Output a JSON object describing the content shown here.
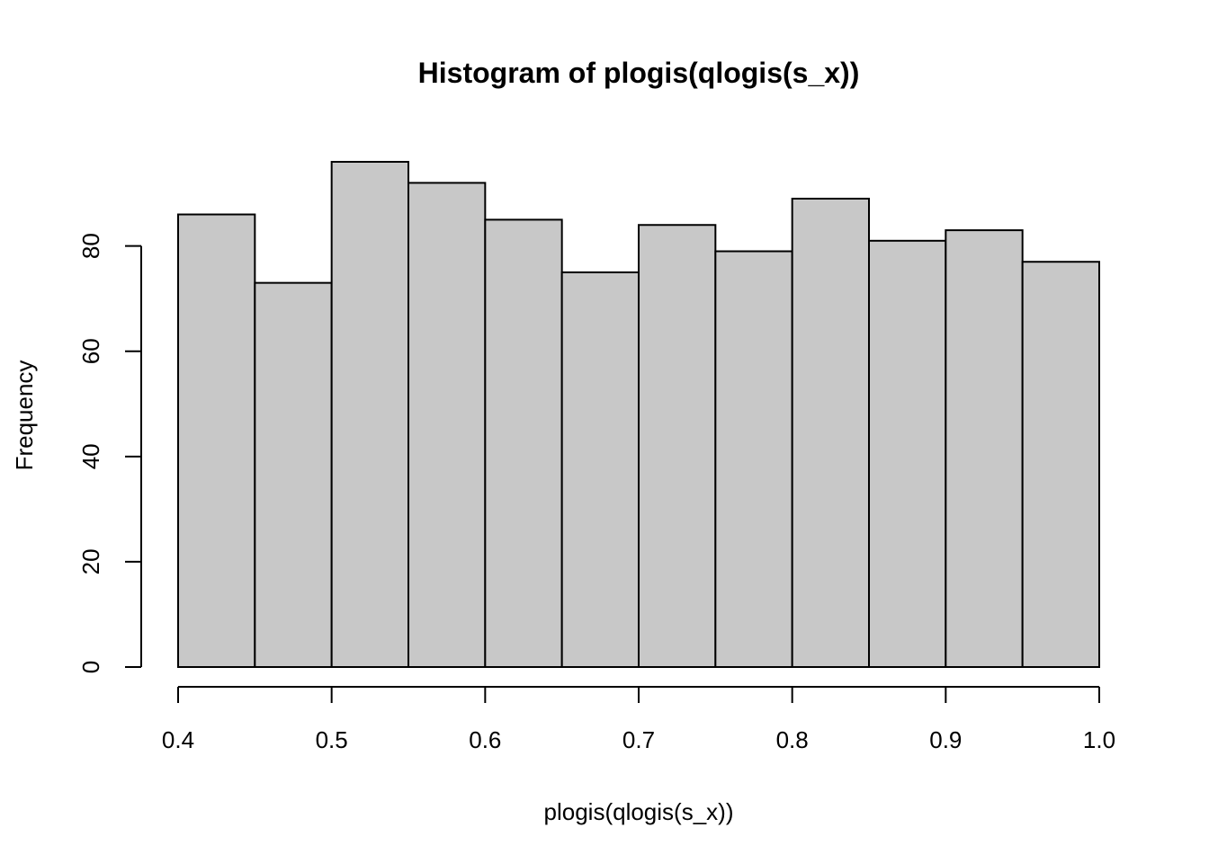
{
  "chart_data": {
    "type": "bar",
    "title": "Histogram of plogis(qlogis(s_x))",
    "xlabel": "plogis(qlogis(s_x))",
    "ylabel": "Frequency",
    "bins": [
      {
        "x0": 0.4,
        "x1": 0.45,
        "count": 86
      },
      {
        "x0": 0.45,
        "x1": 0.5,
        "count": 73
      },
      {
        "x0": 0.5,
        "x1": 0.55,
        "count": 96
      },
      {
        "x0": 0.55,
        "x1": 0.6,
        "count": 92
      },
      {
        "x0": 0.6,
        "x1": 0.65,
        "count": 85
      },
      {
        "x0": 0.65,
        "x1": 0.7,
        "count": 75
      },
      {
        "x0": 0.7,
        "x1": 0.75,
        "count": 84
      },
      {
        "x0": 0.75,
        "x1": 0.8,
        "count": 79
      },
      {
        "x0": 0.8,
        "x1": 0.85,
        "count": 89
      },
      {
        "x0": 0.85,
        "x1": 0.9,
        "count": 81
      },
      {
        "x0": 0.9,
        "x1": 0.95,
        "count": 83
      },
      {
        "x0": 0.95,
        "x1": 1.0,
        "count": 77
      }
    ],
    "xlim": [
      0.4,
      1.0
    ],
    "ylim": [
      0,
      96
    ],
    "x_ticks": [
      0.4,
      0.5,
      0.6,
      0.7,
      0.8,
      0.9,
      1.0
    ],
    "x_tick_labels": [
      "0.4",
      "0.5",
      "0.6",
      "0.7",
      "0.8",
      "0.9",
      "1.0"
    ],
    "y_ticks": [
      0,
      20,
      40,
      60,
      80
    ],
    "y_tick_labels": [
      "0",
      "20",
      "40",
      "60",
      "80"
    ],
    "bar_fill": "#c8c8c8",
    "bar_stroke": "#000000",
    "grid": false,
    "legend": "none"
  }
}
